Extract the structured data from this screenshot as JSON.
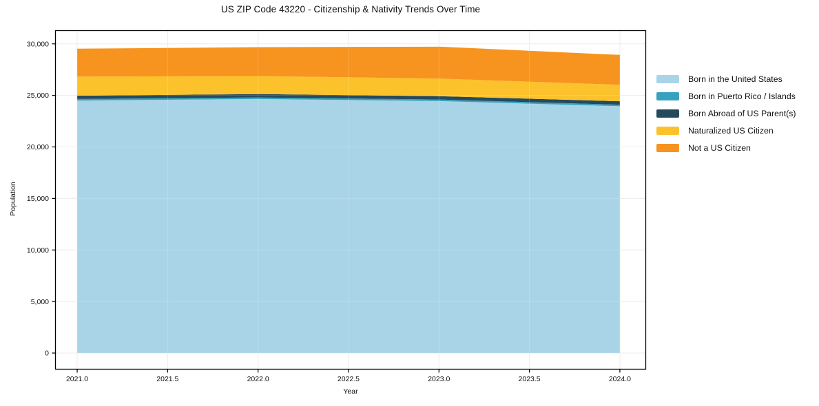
{
  "title": "US ZIP Code 43220 - Citizenship & Nativity Trends Over Time",
  "chart_data": {
    "type": "area",
    "stacked": true,
    "title": "US ZIP Code 43220 - Citizenship & Nativity Trends Over Time",
    "xlabel": "Year",
    "ylabel": "Population",
    "x": [
      2021,
      2022,
      2023,
      2024
    ],
    "series": [
      {
        "name": "Born in the United States",
        "color": "#a9d4e8",
        "values": [
          24500,
          24650,
          24450,
          23950
        ]
      },
      {
        "name": "Born in Puerto Rico / Islands",
        "color": "#37a2be",
        "values": [
          150,
          150,
          150,
          150
        ]
      },
      {
        "name": "Born Abroad of US Parent(s)",
        "color": "#254a5c",
        "values": [
          330,
          330,
          330,
          330
        ]
      },
      {
        "name": "Naturalized US Citizen",
        "color": "#fcc22c",
        "values": [
          1850,
          1750,
          1700,
          1600
        ]
      },
      {
        "name": "Not a US Citizen",
        "color": "#f7941f",
        "values": [
          2700,
          2800,
          3100,
          2900
        ]
      }
    ],
    "stack_totals": [
      29530,
      29680,
      29730,
      28930
    ],
    "xlim": [
      2020.878,
      2024.145
    ],
    "ylim": [
      -1600,
      31320
    ],
    "x_ticks": {
      "values": [
        2021.0,
        2021.5,
        2022.0,
        2022.5,
        2023.0,
        2023.5,
        2024.0
      ],
      "labels": [
        "2021.0",
        "2021.5",
        "2022.0",
        "2022.5",
        "2023.0",
        "2023.5",
        "2024.0"
      ]
    },
    "y_ticks": {
      "values": [
        0,
        5000,
        10000,
        15000,
        20000,
        25000,
        30000
      ],
      "labels": [
        "0",
        "5,000",
        "10,000",
        "15,000",
        "20,000",
        "25,000",
        "30,000"
      ]
    },
    "grid": true,
    "legend_position": "right",
    "colors": {
      "background": "#ffffff",
      "gridline": "#e8e8e8",
      "spine": "#000000",
      "text": "#111111"
    }
  }
}
